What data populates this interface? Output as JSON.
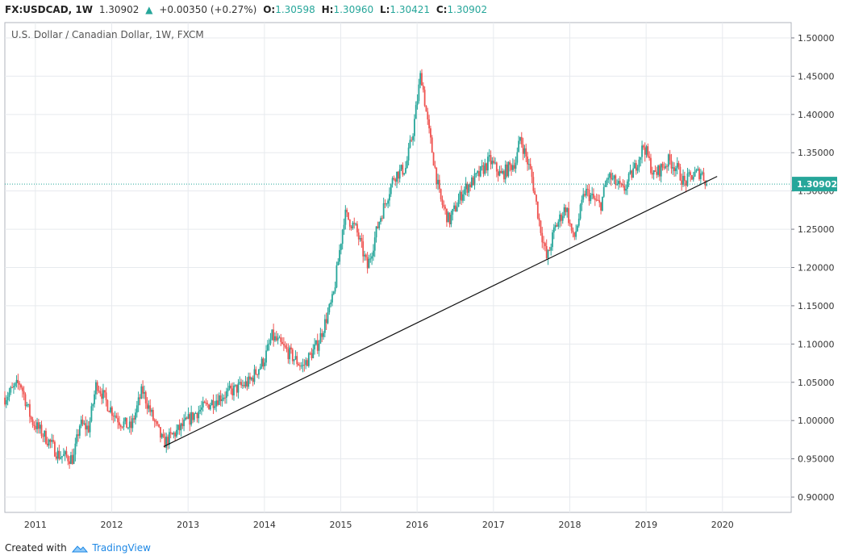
{
  "header": {
    "symbol": "FX:USDCAD, 1W",
    "last": "1.30902",
    "change_arrow": "▲",
    "change": "+0.00350 (+0.27%)",
    "open_label": "O:",
    "open": "1.30598",
    "high_label": "H:",
    "high": "1.30960",
    "low_label": "L:",
    "low": "1.30421",
    "close_label": "C:",
    "close": "1.30902"
  },
  "colors": {
    "up": "#26a69a",
    "down": "#ef5350",
    "grid": "#e7eaee",
    "price_tag": "#26a69a"
  },
  "chart_data": {
    "type": "candlestick",
    "title": "U.S. Dollar / Canadian Dollar, 1W, FXCM",
    "ylim": [
      0.88,
      1.52
    ],
    "y_ticks": [
      "1.50000",
      "1.45000",
      "1.40000",
      "1.35000",
      "1.30000",
      "1.25000",
      "1.20000",
      "1.15000",
      "1.10000",
      "1.05000",
      "1.00000",
      "0.95000",
      "0.90000"
    ],
    "x_ticks": [
      "2011",
      "2012",
      "2013",
      "2014",
      "2015",
      "2016",
      "2017",
      "2018",
      "2019",
      "2020"
    ],
    "xlim": [
      2010.6,
      2020.9
    ],
    "last_price": 1.30902,
    "last_price_label": "1.30902",
    "trendline": {
      "start": [
        2012.68,
        0.966
      ],
      "end": [
        2019.93,
        1.319
      ]
    },
    "path": [
      [
        2010.6,
        1.03
      ],
      [
        2010.8,
        1.05
      ],
      [
        2010.95,
        1.0
      ],
      [
        2011.2,
        0.97
      ],
      [
        2011.3,
        0.955
      ],
      [
        2011.5,
        0.95
      ],
      [
        2011.58,
        0.995
      ],
      [
        2011.7,
        0.99
      ],
      [
        2011.8,
        1.05
      ],
      [
        2011.95,
        1.02
      ],
      [
        2012.1,
        1.0
      ],
      [
        2012.25,
        0.99
      ],
      [
        2012.4,
        1.04
      ],
      [
        2012.55,
        1.0
      ],
      [
        2012.68,
        0.97
      ],
      [
        2012.9,
        0.99
      ],
      [
        2013.1,
        1.01
      ],
      [
        2013.4,
        1.03
      ],
      [
        2013.6,
        1.04
      ],
      [
        2013.8,
        1.05
      ],
      [
        2014.0,
        1.08
      ],
      [
        2014.1,
        1.11
      ],
      [
        2014.3,
        1.09
      ],
      [
        2014.5,
        1.07
      ],
      [
        2014.7,
        1.1
      ],
      [
        2014.9,
        1.16
      ],
      [
        2015.05,
        1.27
      ],
      [
        2015.2,
        1.25
      ],
      [
        2015.35,
        1.2
      ],
      [
        2015.5,
        1.26
      ],
      [
        2015.7,
        1.32
      ],
      [
        2015.85,
        1.33
      ],
      [
        2015.95,
        1.38
      ],
      [
        2016.05,
        1.455
      ],
      [
        2016.15,
        1.38
      ],
      [
        2016.3,
        1.29
      ],
      [
        2016.42,
        1.26
      ],
      [
        2016.6,
        1.3
      ],
      [
        2016.8,
        1.32
      ],
      [
        2016.95,
        1.34
      ],
      [
        2017.1,
        1.32
      ],
      [
        2017.3,
        1.34
      ],
      [
        2017.35,
        1.37
      ],
      [
        2017.5,
        1.32
      ],
      [
        2017.6,
        1.26
      ],
      [
        2017.7,
        1.21
      ],
      [
        2017.8,
        1.25
      ],
      [
        2017.95,
        1.28
      ],
      [
        2018.05,
        1.235
      ],
      [
        2018.2,
        1.3
      ],
      [
        2018.4,
        1.28
      ],
      [
        2018.5,
        1.32
      ],
      [
        2018.7,
        1.3
      ],
      [
        2018.85,
        1.33
      ],
      [
        2018.97,
        1.36
      ],
      [
        2019.1,
        1.32
      ],
      [
        2019.3,
        1.34
      ],
      [
        2019.4,
        1.33
      ],
      [
        2019.5,
        1.31
      ],
      [
        2019.6,
        1.32
      ],
      [
        2019.72,
        1.325
      ],
      [
        2019.8,
        1.309
      ]
    ]
  },
  "footer": {
    "created": "Created with",
    "brand": "TradingView"
  }
}
